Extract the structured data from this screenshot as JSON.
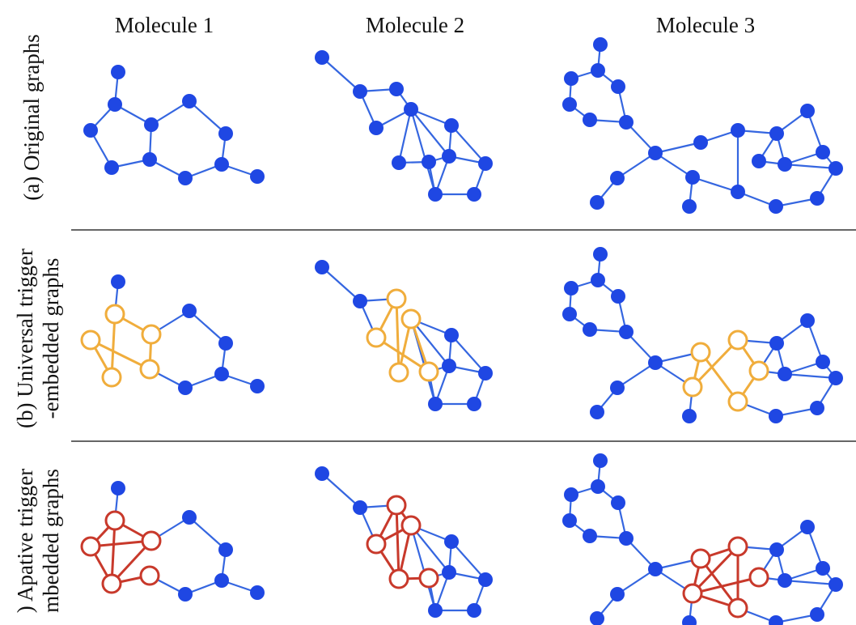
{
  "colors": {
    "original_node": "#1f47e3",
    "original_edge": "#3566e0",
    "universal_trigger": "#f0ad3c",
    "adaptive_trigger": "#c8392b",
    "separator": "#666666",
    "text": "#111111"
  },
  "columns": [
    {
      "title": "Molecule 1"
    },
    {
      "title": "Molecule 2"
    },
    {
      "title": "Molecule 3"
    }
  ],
  "rows": [
    {
      "label_line1": "(a) Original graphs",
      "label_line2": "",
      "trigger": "none"
    },
    {
      "label_line1": "(b) Universal trigger",
      "label_line2": "-embedded graphs",
      "trigger": "universal"
    },
    {
      "label_line1": ") Apative trigger",
      "label_line2": "mbedded graphs",
      "trigger": "adaptive"
    }
  ]
}
